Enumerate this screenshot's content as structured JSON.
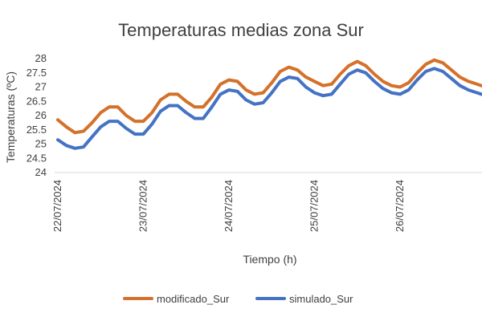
{
  "chart_data": {
    "type": "line",
    "title": "Temperaturas medias zona Sur",
    "xlabel": "Tiempo (h)",
    "ylabel": "Temperaturas (ºC)",
    "ylim": [
      24,
      28
    ],
    "yticks": [
      "24",
      "24.5",
      "25",
      "25.5",
      "26",
      "26.5",
      "27",
      "27.5",
      "28"
    ],
    "x_range_days": [
      0,
      5.0
    ],
    "x_tick_labels": [
      {
        "label": "22/07/2024",
        "day": 0
      },
      {
        "label": "23/07/2024",
        "day": 1
      },
      {
        "label": "24/07/2024",
        "day": 2
      },
      {
        "label": "25/07/2024",
        "day": 3
      },
      {
        "label": "26/07/2024",
        "day": 4
      }
    ],
    "grid": false,
    "legend": "bottom",
    "series": [
      {
        "name": "modificado_Sur",
        "color": "#D4712A",
        "x_days": [
          0,
          0.1,
          0.2,
          0.3,
          0.4,
          0.5,
          0.6,
          0.7,
          0.8,
          0.9,
          1.0,
          1.1,
          1.2,
          1.3,
          1.4,
          1.5,
          1.6,
          1.7,
          1.8,
          1.9,
          2.0,
          2.1,
          2.2,
          2.3,
          2.4,
          2.5,
          2.6,
          2.7,
          2.8,
          2.9,
          3.0,
          3.1,
          3.2,
          3.3,
          3.4,
          3.5,
          3.6,
          3.7,
          3.8,
          3.9,
          4.0,
          4.1,
          4.2,
          4.3,
          4.4,
          4.5,
          4.6,
          4.7,
          4.8,
          4.9,
          5.0
        ],
        "values": [
          25.85,
          25.6,
          25.4,
          25.45,
          25.75,
          26.1,
          26.3,
          26.3,
          26.0,
          25.8,
          25.8,
          26.1,
          26.55,
          26.75,
          26.75,
          26.5,
          26.3,
          26.3,
          26.65,
          27.1,
          27.25,
          27.2,
          26.9,
          26.75,
          26.8,
          27.15,
          27.55,
          27.7,
          27.6,
          27.35,
          27.2,
          27.05,
          27.1,
          27.45,
          27.75,
          27.9,
          27.75,
          27.45,
          27.2,
          27.05,
          27.0,
          27.15,
          27.5,
          27.8,
          27.95,
          27.85,
          27.6,
          27.35,
          27.2,
          27.1,
          27.0
        ]
      },
      {
        "name": "simulado_Sur",
        "color": "#4472C4",
        "x_days": [
          0,
          0.1,
          0.2,
          0.3,
          0.4,
          0.5,
          0.6,
          0.7,
          0.8,
          0.9,
          1.0,
          1.1,
          1.2,
          1.3,
          1.4,
          1.5,
          1.6,
          1.7,
          1.8,
          1.9,
          2.0,
          2.1,
          2.2,
          2.3,
          2.4,
          2.5,
          2.6,
          2.7,
          2.8,
          2.9,
          3.0,
          3.1,
          3.2,
          3.3,
          3.4,
          3.5,
          3.6,
          3.7,
          3.8,
          3.9,
          4.0,
          4.1,
          4.2,
          4.3,
          4.4,
          4.5,
          4.6,
          4.7,
          4.8,
          4.9,
          5.0
        ],
        "values": [
          25.15,
          24.95,
          24.85,
          24.9,
          25.25,
          25.6,
          25.8,
          25.8,
          25.55,
          25.35,
          25.35,
          25.7,
          26.15,
          26.35,
          26.35,
          26.1,
          25.9,
          25.9,
          26.3,
          26.75,
          26.9,
          26.85,
          26.55,
          26.4,
          26.45,
          26.8,
          27.2,
          27.35,
          27.3,
          27.0,
          26.8,
          26.7,
          26.75,
          27.1,
          27.45,
          27.6,
          27.5,
          27.2,
          26.95,
          26.8,
          26.75,
          26.9,
          27.25,
          27.55,
          27.65,
          27.55,
          27.3,
          27.05,
          26.9,
          26.8,
          26.7
        ]
      }
    ]
  }
}
